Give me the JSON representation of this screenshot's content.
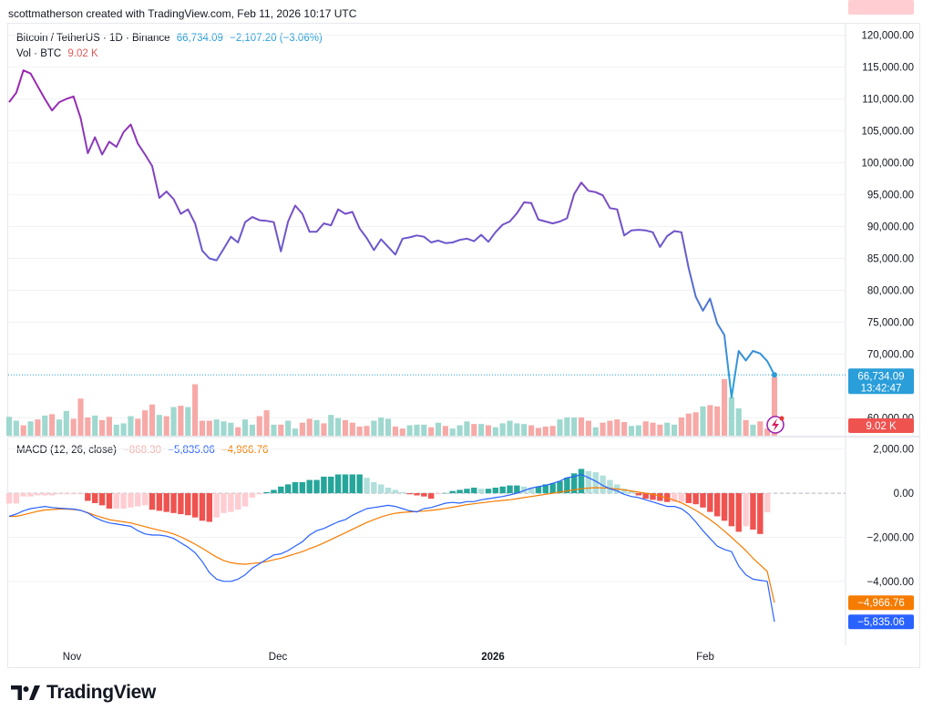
{
  "caption": "scottmatherson created with TradingView.com, Feb 11, 2026 10:17 UTC",
  "legend": {
    "symbol": "Bitcoin / TetherUS · 1D · Binance",
    "last": "66,734.09",
    "change": "−2,107.20 (−3.06%)",
    "vol_label": "Vol · BTC",
    "vol_value": "9.02 K",
    "macd_label": "MACD (12, 26, close)",
    "macd_hist": "−868.30",
    "macd_line": "−5,835.06",
    "macd_signal": "−4,966.76"
  },
  "brand": "TradingView",
  "colors": {
    "line_top": "#9c27b0",
    "line_bottom": "#2a9ed9",
    "bull": "#26a69a",
    "bear": "#ef5350",
    "macd": "#2962ff",
    "signal": "#f57c00"
  },
  "chart_data": [
    {
      "type": "line",
      "name": "price",
      "series": [
        {
          "name": "Bitcoin / TetherUS",
          "values": [
            109500,
            111000,
            114500,
            114000,
            112000,
            110000,
            108200,
            109500,
            110000,
            110400,
            107000,
            101500,
            104000,
            101300,
            103300,
            102500,
            104800,
            106000,
            103000,
            101300,
            99500,
            94500,
            95500,
            94300,
            92000,
            92700,
            90500,
            86200,
            85000,
            84700,
            86500,
            88400,
            87500,
            90700,
            91500,
            91000,
            90900,
            90700,
            86100,
            90800,
            93300,
            92000,
            89200,
            89200,
            90500,
            90200,
            92700,
            92000,
            92300,
            89700,
            88200,
            86300,
            88000,
            86800,
            85600,
            88100,
            88300,
            88600,
            88400,
            87500,
            87800,
            87400,
            87500,
            87900,
            88100,
            87700,
            88700,
            87600,
            89100,
            90300,
            90800,
            92100,
            93800,
            93700,
            91100,
            90800,
            90500,
            90800,
            91300,
            95100,
            96900,
            95600,
            95400,
            94900,
            92900,
            92700,
            88600,
            89400,
            89500,
            89400,
            89100,
            86800,
            88500,
            89300,
            89100,
            83500,
            79000,
            76800,
            78700,
            74800,
            73000,
            63200,
            70500,
            69000,
            70500,
            70100,
            68900,
            66734.09
          ]
        }
      ],
      "ylim": [
        57200,
        121100
      ],
      "yticks": [
        "120,000.00",
        "115,000.00",
        "110,000.00",
        "105,000.00",
        "100,000.00",
        "95,000.00",
        "90,000.00",
        "85,000.00",
        "80,000.00",
        "75,000.00",
        "70,000.00",
        "60,000.00"
      ],
      "last_label": "66,734.09",
      "countdown": "13:42:47"
    },
    {
      "type": "bar",
      "name": "volume",
      "values": [
        2.9,
        2.3,
        1.6,
        2.2,
        2.5,
        3.1,
        3.3,
        2.5,
        3.8,
        2.6,
        5.7,
        2.8,
        3.1,
        2.4,
        2.9,
        1.7,
        1.9,
        3.0,
        2.6,
        3.9,
        4.8,
        3.2,
        3.0,
        4.4,
        4.6,
        4.4,
        7.9,
        2.3,
        2.3,
        2.5,
        2.2,
        2.0,
        1.3,
        2.5,
        1.7,
        3.0,
        3.9,
        1.7,
        1.7,
        2.3,
        1.1,
        2.0,
        2.6,
        2.4,
        1.9,
        3.2,
        2.7,
        2.4,
        2.0,
        1.4,
        1.5,
        2.3,
        2.8,
        2.6,
        1.4,
        1.1,
        1.6,
        1.7,
        1.7,
        1.3,
        2.0,
        1.5,
        1.1,
        1.6,
        2.2,
        1.8,
        1.8,
        1.6,
        1.3,
        1.9,
        2.3,
        1.9,
        1.8,
        1.6,
        1.2,
        1.4,
        1.5,
        2.5,
        2.8,
        2.8,
        2.8,
        2.3,
        1.3,
        2.0,
        2.3,
        2.5,
        2.1,
        1.5,
        1.6,
        2.2,
        2.0,
        1.7,
        2.0,
        1.7,
        2.8,
        3.4,
        3.6,
        4.5,
        4.7,
        4.5,
        8.7,
        5.9,
        4.2,
        2.4,
        1.7,
        2.2,
        1.1,
        9.02
      ],
      "direction": [
        1,
        1,
        0,
        1,
        0,
        1,
        0,
        1,
        1,
        0,
        0,
        0,
        1,
        0,
        0,
        1,
        1,
        1,
        0,
        0,
        0,
        1,
        0,
        1,
        0,
        1,
        0,
        0,
        0,
        1,
        1,
        1,
        0,
        1,
        1,
        0,
        0,
        1,
        0,
        1,
        1,
        0,
        0,
        1,
        0,
        1,
        1,
        0,
        0,
        0,
        0,
        1,
        1,
        1,
        0,
        0,
        1,
        1,
        1,
        0,
        1,
        0,
        1,
        1,
        1,
        0,
        1,
        0,
        1,
        1,
        1,
        1,
        1,
        0,
        0,
        0,
        0,
        1,
        1,
        1,
        0,
        0,
        1,
        0,
        0,
        0,
        0,
        1,
        1,
        0,
        0,
        0,
        1,
        1,
        0,
        0,
        0,
        1,
        0,
        0,
        0,
        1,
        1,
        0,
        1,
        0,
        0,
        0
      ],
      "last_label": "9.02 K"
    },
    {
      "type": "line",
      "name": "MACD (12, 26, close)",
      "x_ticks": [
        "Nov",
        "Dec",
        "2026",
        "Feb"
      ],
      "series": [
        {
          "name": "MACD",
          "values": [
            -1050,
            -950,
            -800,
            -700,
            -650,
            -600,
            -650,
            -680,
            -700,
            -720,
            -780,
            -900,
            -1100,
            -1250,
            -1350,
            -1400,
            -1450,
            -1500,
            -1700,
            -1850,
            -1900,
            -1900,
            -1950,
            -2050,
            -2250,
            -2450,
            -2700,
            -3100,
            -3600,
            -3900,
            -4000,
            -4000,
            -3900,
            -3700,
            -3400,
            -3200,
            -3000,
            -2800,
            -2750,
            -2600,
            -2400,
            -2200,
            -1900,
            -1700,
            -1600,
            -1450,
            -1300,
            -1200,
            -1000,
            -850,
            -700,
            -650,
            -600,
            -550,
            -600,
            -700,
            -800,
            -850,
            -700,
            -650,
            -550,
            -450,
            -420,
            -450,
            -380,
            -380,
            -300,
            -250,
            -200,
            -150,
            -80,
            0,
            120,
            230,
            300,
            350,
            450,
            550,
            700,
            750,
            850,
            700,
            550,
            350,
            200,
            100,
            -50,
            -150,
            -200,
            -300,
            -400,
            -500,
            -600,
            -600,
            -700,
            -950,
            -1300,
            -1700,
            -2050,
            -2400,
            -2550,
            -2650,
            -3300,
            -3700,
            -3900,
            -3950,
            -4000,
            -5835.06
          ]
        },
        {
          "name": "Signal",
          "values": [
            -1050,
            -1050,
            -980,
            -900,
            -820,
            -760,
            -740,
            -720,
            -720,
            -740,
            -780,
            -880,
            -1000,
            -1100,
            -1200,
            -1250,
            -1300,
            -1350,
            -1430,
            -1520,
            -1600,
            -1680,
            -1750,
            -1850,
            -1980,
            -2140,
            -2310,
            -2500,
            -2700,
            -2900,
            -3050,
            -3150,
            -3200,
            -3220,
            -3190,
            -3150,
            -3100,
            -3020,
            -2950,
            -2850,
            -2750,
            -2650,
            -2520,
            -2400,
            -2260,
            -2100,
            -1950,
            -1800,
            -1640,
            -1480,
            -1330,
            -1200,
            -1080,
            -980,
            -910,
            -870,
            -850,
            -830,
            -810,
            -780,
            -740,
            -690,
            -640,
            -580,
            -520,
            -480,
            -440,
            -400,
            -360,
            -330,
            -300,
            -250,
            -200,
            -150,
            -100,
            -50,
            0,
            50,
            100,
            150,
            200,
            230,
            250,
            240,
            220,
            190,
            150,
            100,
            50,
            0,
            -50,
            -130,
            -220,
            -320,
            -440,
            -600,
            -780,
            -980,
            -1200,
            -1450,
            -1720,
            -2000,
            -2300,
            -2600,
            -2950,
            -3250,
            -3550,
            -4966.76
          ]
        },
        {
          "name": "Histogram",
          "values": [
            -470,
            -470,
            -150,
            -150,
            -100,
            -100,
            -100,
            -50,
            -50,
            -50,
            -50,
            -350,
            -450,
            -550,
            -700,
            -700,
            -700,
            -650,
            -600,
            -550,
            -750,
            -800,
            -850,
            -900,
            -950,
            -1000,
            -1100,
            -1250,
            -1300,
            -1100,
            -900,
            -850,
            -750,
            -600,
            -200,
            -50,
            50,
            150,
            300,
            400,
            500,
            500,
            600,
            600,
            750,
            750,
            850,
            850,
            850,
            850,
            700,
            500,
            400,
            250,
            150,
            50,
            -50,
            -100,
            -150,
            -250,
            -50,
            10,
            100,
            150,
            200,
            250,
            200,
            200,
            250,
            300,
            350,
            350,
            300,
            250,
            300,
            400,
            450,
            550,
            700,
            900,
            1100,
            1000,
            950,
            800,
            600,
            400,
            200,
            100,
            -100,
            -250,
            -300,
            -350,
            -400,
            -400,
            -400,
            -450,
            -500,
            -650,
            -850,
            -1050,
            -1250,
            -1500,
            -1750,
            -1500,
            -1650,
            -1850,
            -868.3
          ]
        }
      ],
      "ylim": [
        -6900,
        2400
      ],
      "yticks": [
        "2,000.00",
        "0.00",
        "−2,000.00",
        "−4,000.00"
      ],
      "last_labels": {
        "histogram": "−868.30",
        "signal": "−4,966.76",
        "macd": "−5,835.06"
      }
    }
  ]
}
